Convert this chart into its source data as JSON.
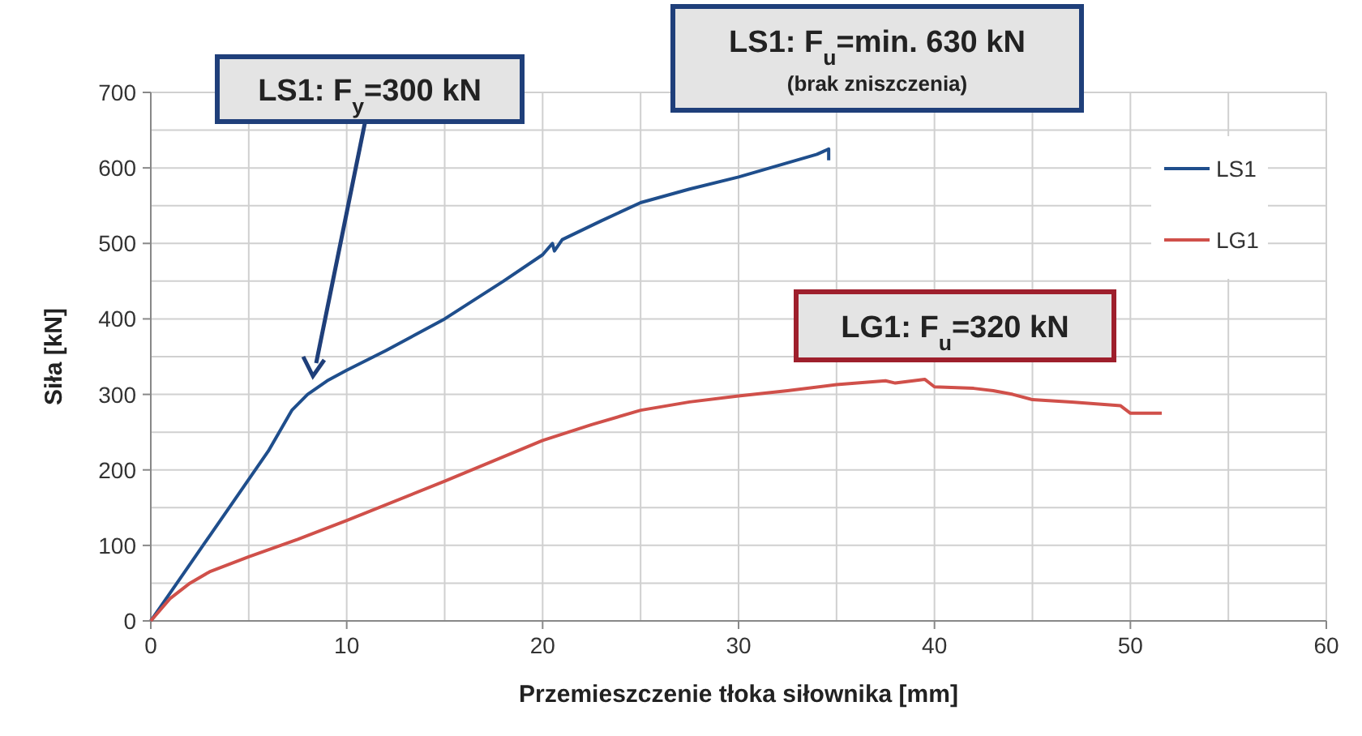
{
  "chart_data": {
    "type": "line",
    "xlabel": "Przemieszczenie tłoka siłownika [mm]",
    "ylabel": "Siła [kN]",
    "xlim": [
      0,
      60
    ],
    "ylim": [
      0,
      700
    ],
    "xticks": [
      0,
      {
        "value": 5,
        "label": null
      },
      10,
      {
        "value": 15,
        "label": null
      },
      20,
      {
        "value": 25,
        "label": null
      },
      30,
      {
        "value": 35,
        "label": null
      },
      40,
      {
        "value": 45,
        "label": null
      },
      50,
      {
        "value": 55,
        "label": null
      },
      60
    ],
    "yticks": [
      0,
      {
        "value": 50,
        "label": null
      },
      100,
      {
        "value": 150,
        "label": null
      },
      200,
      {
        "value": 250,
        "label": null
      },
      300,
      {
        "value": 350,
        "label": null
      },
      400,
      {
        "value": 450,
        "label": null
      },
      500,
      {
        "value": 550,
        "label": null
      },
      600,
      {
        "value": 650,
        "label": null
      },
      700
    ],
    "grid": true,
    "legend": "right",
    "line_style": "solid",
    "marker": "none",
    "series": [
      {
        "name": "LS1",
        "color": "#1f4e8c",
        "x": [
          0,
          2,
          4,
          6,
          7.2,
          8,
          9,
          10,
          12,
          15,
          18,
          20,
          20.5,
          20.6,
          21,
          23,
          25,
          27.5,
          30,
          32,
          34,
          34.6,
          34.6
        ],
        "values": [
          0,
          75,
          150,
          225,
          279,
          300,
          318,
          332,
          358,
          400,
          450,
          485,
          500,
          490,
          505,
          530,
          554,
          572,
          588,
          603,
          618,
          625,
          610
        ]
      },
      {
        "name": "LG1",
        "color": "#d0504a",
        "x": [
          0,
          1,
          2,
          3,
          5,
          7.5,
          10,
          15,
          20,
          22.5,
          25,
          27.5,
          30,
          32.5,
          35,
          37.5,
          38,
          39.5,
          40,
          42,
          43,
          44,
          45,
          47,
          49.5,
          50,
          51.6
        ],
        "values": [
          0,
          30,
          50,
          65,
          85,
          108,
          133,
          185,
          239,
          260,
          279,
          290,
          298,
          305,
          313,
          318,
          315,
          320,
          310,
          308,
          305,
          300,
          293,
          290,
          285,
          275,
          275
        ]
      }
    ],
    "annotations": [
      "LS1: F$_{y}$=300 kN",
      "LS1: F$_{u}$=min. 630 kN",
      "(brak zniszczenia)",
      "LG1: F$_{u}$=320 kN"
    ]
  }
}
